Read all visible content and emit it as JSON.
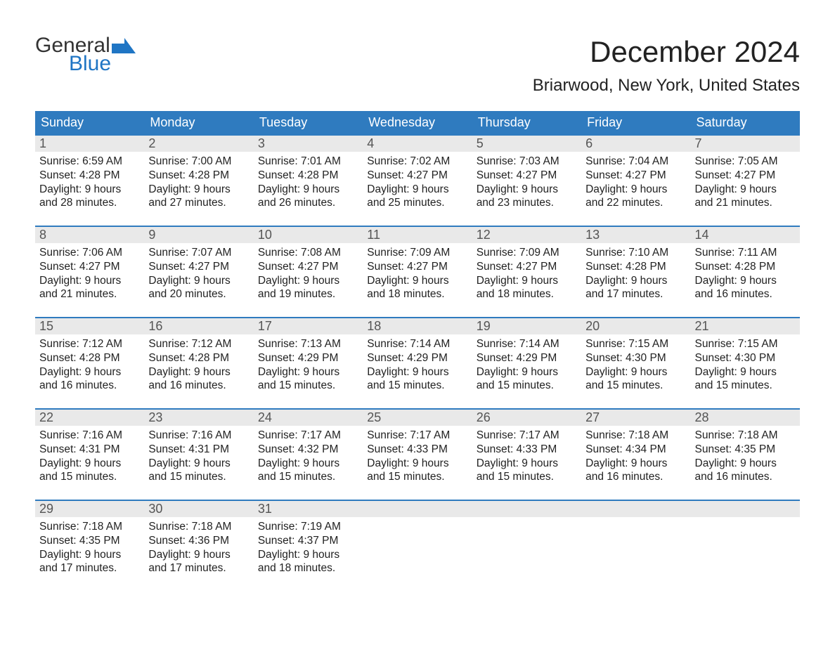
{
  "logo": {
    "word1": "General",
    "word2": "Blue",
    "flag_color": "#1f75c4"
  },
  "title": "December 2024",
  "location": "Briarwood, New York, United States",
  "colors": {
    "header_bg": "#2f7bbf",
    "header_text": "#ffffff",
    "daynum_bg": "#e9e9e9",
    "week_border": "#2f7bbf",
    "body_text": "#222222"
  },
  "day_headers": [
    "Sunday",
    "Monday",
    "Tuesday",
    "Wednesday",
    "Thursday",
    "Friday",
    "Saturday"
  ],
  "labels": {
    "sunrise": "Sunrise:",
    "sunset": "Sunset:",
    "daylight": "Daylight:"
  },
  "weeks": [
    [
      {
        "n": "1",
        "sunrise": "6:59 AM",
        "sunset": "4:28 PM",
        "dl1": "9 hours",
        "dl2": "and 28 minutes."
      },
      {
        "n": "2",
        "sunrise": "7:00 AM",
        "sunset": "4:28 PM",
        "dl1": "9 hours",
        "dl2": "and 27 minutes."
      },
      {
        "n": "3",
        "sunrise": "7:01 AM",
        "sunset": "4:28 PM",
        "dl1": "9 hours",
        "dl2": "and 26 minutes."
      },
      {
        "n": "4",
        "sunrise": "7:02 AM",
        "sunset": "4:27 PM",
        "dl1": "9 hours",
        "dl2": "and 25 minutes."
      },
      {
        "n": "5",
        "sunrise": "7:03 AM",
        "sunset": "4:27 PM",
        "dl1": "9 hours",
        "dl2": "and 23 minutes."
      },
      {
        "n": "6",
        "sunrise": "7:04 AM",
        "sunset": "4:27 PM",
        "dl1": "9 hours",
        "dl2": "and 22 minutes."
      },
      {
        "n": "7",
        "sunrise": "7:05 AM",
        "sunset": "4:27 PM",
        "dl1": "9 hours",
        "dl2": "and 21 minutes."
      }
    ],
    [
      {
        "n": "8",
        "sunrise": "7:06 AM",
        "sunset": "4:27 PM",
        "dl1": "9 hours",
        "dl2": "and 21 minutes."
      },
      {
        "n": "9",
        "sunrise": "7:07 AM",
        "sunset": "4:27 PM",
        "dl1": "9 hours",
        "dl2": "and 20 minutes."
      },
      {
        "n": "10",
        "sunrise": "7:08 AM",
        "sunset": "4:27 PM",
        "dl1": "9 hours",
        "dl2": "and 19 minutes."
      },
      {
        "n": "11",
        "sunrise": "7:09 AM",
        "sunset": "4:27 PM",
        "dl1": "9 hours",
        "dl2": "and 18 minutes."
      },
      {
        "n": "12",
        "sunrise": "7:09 AM",
        "sunset": "4:27 PM",
        "dl1": "9 hours",
        "dl2": "and 18 minutes."
      },
      {
        "n": "13",
        "sunrise": "7:10 AM",
        "sunset": "4:28 PM",
        "dl1": "9 hours",
        "dl2": "and 17 minutes."
      },
      {
        "n": "14",
        "sunrise": "7:11 AM",
        "sunset": "4:28 PM",
        "dl1": "9 hours",
        "dl2": "and 16 minutes."
      }
    ],
    [
      {
        "n": "15",
        "sunrise": "7:12 AM",
        "sunset": "4:28 PM",
        "dl1": "9 hours",
        "dl2": "and 16 minutes."
      },
      {
        "n": "16",
        "sunrise": "7:12 AM",
        "sunset": "4:28 PM",
        "dl1": "9 hours",
        "dl2": "and 16 minutes."
      },
      {
        "n": "17",
        "sunrise": "7:13 AM",
        "sunset": "4:29 PM",
        "dl1": "9 hours",
        "dl2": "and 15 minutes."
      },
      {
        "n": "18",
        "sunrise": "7:14 AM",
        "sunset": "4:29 PM",
        "dl1": "9 hours",
        "dl2": "and 15 minutes."
      },
      {
        "n": "19",
        "sunrise": "7:14 AM",
        "sunset": "4:29 PM",
        "dl1": "9 hours",
        "dl2": "and 15 minutes."
      },
      {
        "n": "20",
        "sunrise": "7:15 AM",
        "sunset": "4:30 PM",
        "dl1": "9 hours",
        "dl2": "and 15 minutes."
      },
      {
        "n": "21",
        "sunrise": "7:15 AM",
        "sunset": "4:30 PM",
        "dl1": "9 hours",
        "dl2": "and 15 minutes."
      }
    ],
    [
      {
        "n": "22",
        "sunrise": "7:16 AM",
        "sunset": "4:31 PM",
        "dl1": "9 hours",
        "dl2": "and 15 minutes."
      },
      {
        "n": "23",
        "sunrise": "7:16 AM",
        "sunset": "4:31 PM",
        "dl1": "9 hours",
        "dl2": "and 15 minutes."
      },
      {
        "n": "24",
        "sunrise": "7:17 AM",
        "sunset": "4:32 PM",
        "dl1": "9 hours",
        "dl2": "and 15 minutes."
      },
      {
        "n": "25",
        "sunrise": "7:17 AM",
        "sunset": "4:33 PM",
        "dl1": "9 hours",
        "dl2": "and 15 minutes."
      },
      {
        "n": "26",
        "sunrise": "7:17 AM",
        "sunset": "4:33 PM",
        "dl1": "9 hours",
        "dl2": "and 15 minutes."
      },
      {
        "n": "27",
        "sunrise": "7:18 AM",
        "sunset": "4:34 PM",
        "dl1": "9 hours",
        "dl2": "and 16 minutes."
      },
      {
        "n": "28",
        "sunrise": "7:18 AM",
        "sunset": "4:35 PM",
        "dl1": "9 hours",
        "dl2": "and 16 minutes."
      }
    ],
    [
      {
        "n": "29",
        "sunrise": "7:18 AM",
        "sunset": "4:35 PM",
        "dl1": "9 hours",
        "dl2": "and 17 minutes."
      },
      {
        "n": "30",
        "sunrise": "7:18 AM",
        "sunset": "4:36 PM",
        "dl1": "9 hours",
        "dl2": "and 17 minutes."
      },
      {
        "n": "31",
        "sunrise": "7:19 AM",
        "sunset": "4:37 PM",
        "dl1": "9 hours",
        "dl2": "and 18 minutes."
      },
      {
        "empty": true
      },
      {
        "empty": true
      },
      {
        "empty": true
      },
      {
        "empty": true
      }
    ]
  ]
}
